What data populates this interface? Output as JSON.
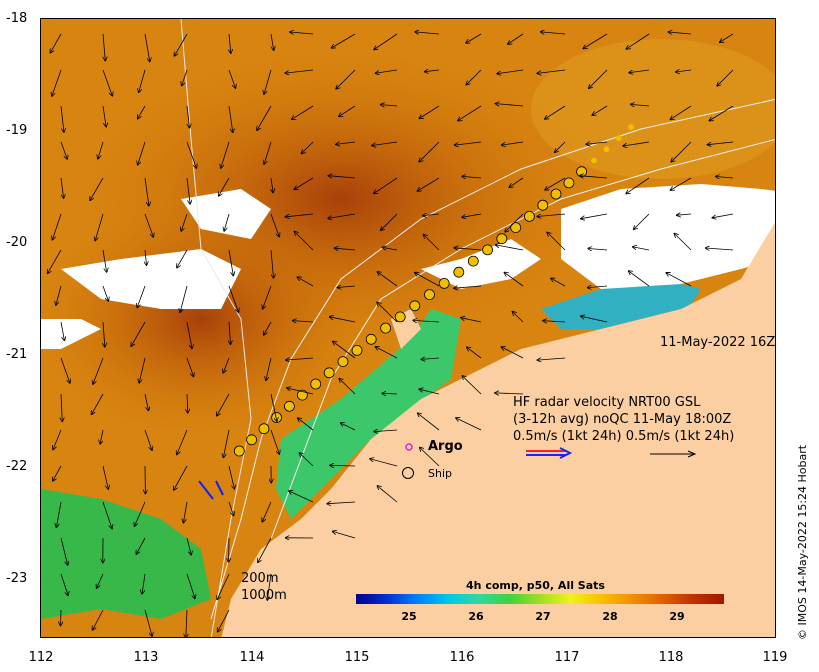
{
  "axes": {
    "y_ticks": [
      "-18",
      "-19",
      "-20",
      "-21",
      "-22",
      "-23"
    ],
    "x_ticks": [
      "112",
      "113",
      "114",
      "115",
      "116",
      "117",
      "118",
      "119"
    ]
  },
  "annotations": {
    "date_label": "11-May-2022 16Z",
    "hf_line1": "HF radar velocity  NRT00 GSL",
    "hf_line2": "(3-12h avg) noQC 11-May 18:00Z",
    "hf_line3": "0.5m/s (1kt 24h)   0.5m/s (1kt 24h)",
    "argo_label": "Argo",
    "ship_label": "Ship",
    "contour_200": "200m",
    "contour_1000": "1000m"
  },
  "colorbar": {
    "title": "4h comp, p50, All Sats",
    "ticks": [
      "25",
      "26",
      "27",
      "28",
      "29"
    ]
  },
  "credit": "© IMOS 14-May-2022 15:24 Hobart",
  "colors": {
    "land": "#fbcfa2",
    "sst_warm": "#d0780a",
    "sst_hot": "#a8400a",
    "sst_cool": "#30c060",
    "ship_track": "#f0c000",
    "argo": "#e020e0",
    "arrow_red": "#ff2020",
    "arrow_blue": "#2020ff"
  },
  "icons": {
    "argo_marker": "magenta-circle-icon",
    "ship_marker": "ship-circle-icon"
  }
}
